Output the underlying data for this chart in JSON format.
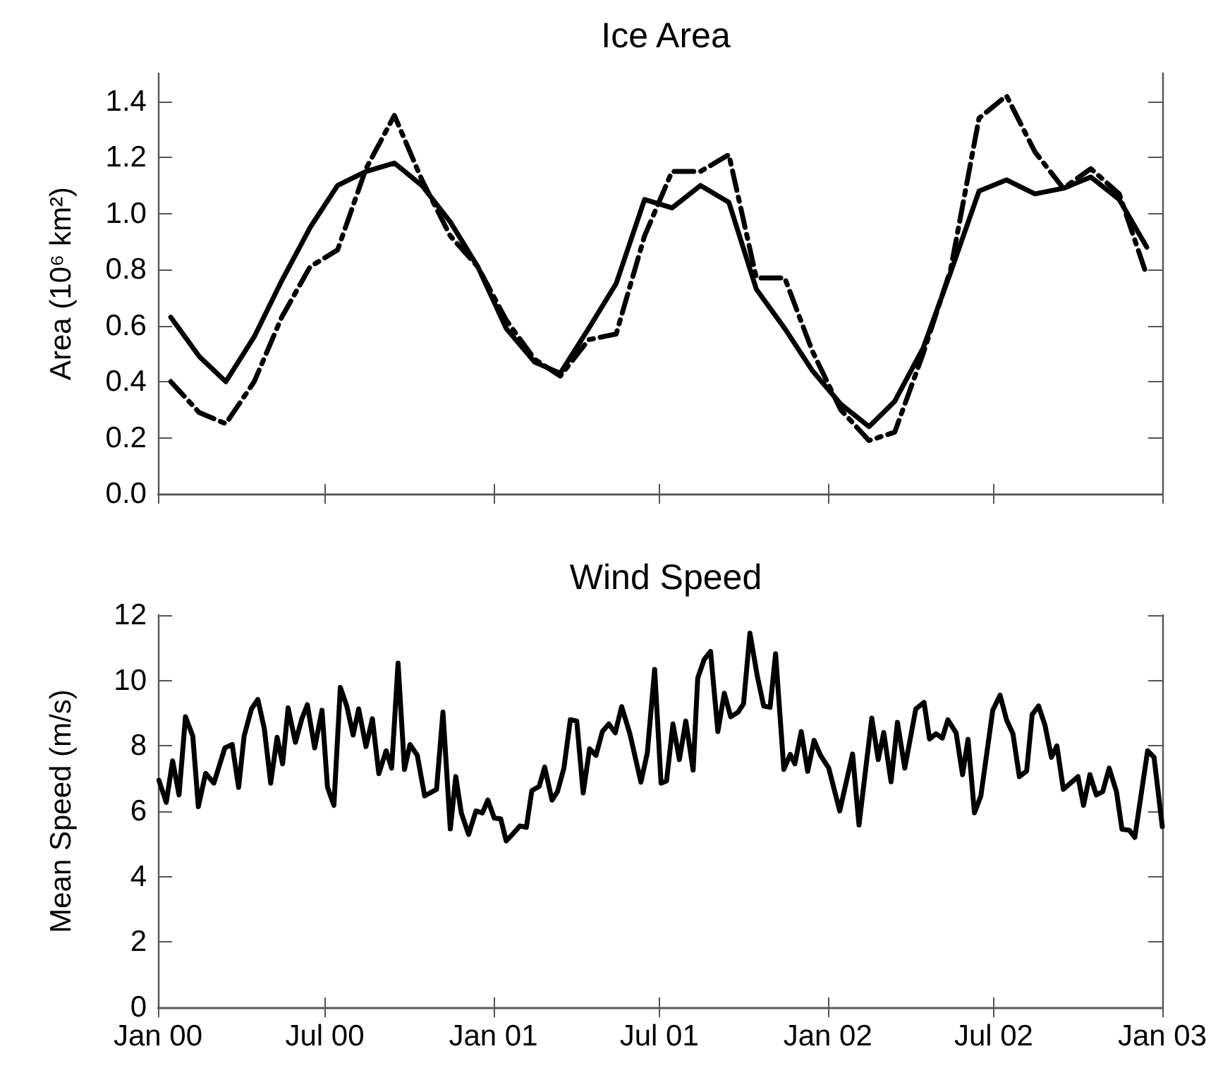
{
  "chart_data": [
    {
      "type": "line",
      "title": "Ice Area",
      "ylabel": "Area (10⁶ km²)",
      "tick_labels": "y",
      "marker": "none",
      "x": [
        "2000-01-15",
        "2000-02-15",
        "2000-03-15",
        "2000-04-15",
        "2000-05-15",
        "2000-06-15",
        "2000-07-15",
        "2000-08-15",
        "2000-09-15",
        "2000-10-15",
        "2000-11-15",
        "2000-12-15",
        "2001-01-15",
        "2001-02-15",
        "2001-03-15",
        "2001-04-15",
        "2001-05-15",
        "2001-06-15",
        "2001-07-15",
        "2001-08-15",
        "2001-09-15",
        "2001-10-15",
        "2001-11-15",
        "2001-12-15",
        "2002-01-15",
        "2002-02-15",
        "2002-03-15",
        "2002-04-15",
        "2002-05-15",
        "2002-06-15",
        "2002-07-15",
        "2002-08-15",
        "2002-09-15",
        "2002-10-15",
        "2002-11-15",
        "2002-12-15"
      ],
      "xlim": [
        "2000-01-01",
        "2003-01-01"
      ],
      "xticks": [
        {
          "value": "2000-01-01",
          "label": null
        },
        {
          "value": "2000-07-01",
          "label": null
        },
        {
          "value": "2001-01-01",
          "label": null
        },
        {
          "value": "2001-07-01",
          "label": null
        },
        {
          "value": "2002-01-01",
          "label": null
        },
        {
          "value": "2002-07-01",
          "label": null
        },
        {
          "value": "2003-01-01",
          "label": null
        }
      ],
      "ylim": [
        0,
        1.5
      ],
      "yticks": [
        {
          "value": 0,
          "label": "0.0"
        },
        {
          "value": 0.2,
          "label": "0.2"
        },
        {
          "value": 0.4,
          "label": "0.4"
        },
        {
          "value": 0.6,
          "label": "0.6"
        },
        {
          "value": 0.8,
          "label": "0.8"
        },
        {
          "value": 1,
          "label": "1.0"
        },
        {
          "value": 1.2,
          "label": "1.2"
        },
        {
          "value": 1.4,
          "label": "1.4"
        }
      ],
      "series": [
        {
          "color": "#000000",
          "line_style": "solid",
          "values": [
            0.63,
            0.49,
            0.4,
            0.56,
            0.76,
            0.95,
            1.1,
            1.15,
            1.18,
            1.1,
            0.97,
            0.81,
            0.59,
            0.47,
            0.43,
            0.59,
            0.75,
            1.05,
            1.02,
            1.1,
            1.04,
            0.73,
            0.59,
            0.44,
            0.32,
            0.24,
            0.33,
            0.52,
            0.79,
            1.08,
            1.12,
            1.07,
            1.09,
            1.13,
            1.05,
            0.88
          ]
        },
        {
          "color": "#000000",
          "line_style": "dashdot",
          "values": [
            0.4,
            0.29,
            0.25,
            0.4,
            0.63,
            0.81,
            0.87,
            1.16,
            1.35,
            1.12,
            0.92,
            0.81,
            0.62,
            0.48,
            0.42,
            0.55,
            0.57,
            0.92,
            1.15,
            1.15,
            1.21,
            0.77,
            0.77,
            0.51,
            0.3,
            0.19,
            0.22,
            0.5,
            0.8,
            1.34,
            1.42,
            1.22,
            1.09,
            1.16,
            1.07,
            0.78
          ]
        }
      ]
    },
    {
      "type": "line",
      "title": "Wind Speed",
      "ylabel": "Mean Speed (m/s)",
      "marker": "none",
      "x": [
        "2000-01-02",
        "2000-01-10",
        "2000-01-17",
        "2000-01-24",
        "2000-01-31",
        "2000-02-08",
        "2000-02-14",
        "2000-02-22",
        "2000-03-02",
        "2000-03-14",
        "2000-03-22",
        "2000-03-29",
        "2000-04-04",
        "2000-04-12",
        "2000-04-19",
        "2000-04-26",
        "2000-05-03",
        "2000-05-10",
        "2000-05-16",
        "2000-05-22",
        "2000-05-30",
        "2000-06-06",
        "2000-06-12",
        "2000-06-20",
        "2000-06-28",
        "2000-07-04",
        "2000-07-11",
        "2000-07-18",
        "2000-07-25",
        "2000-08-01",
        "2000-08-07",
        "2000-08-15",
        "2000-08-22",
        "2000-08-29",
        "2000-09-06",
        "2000-09-12",
        "2000-09-19",
        "2000-09-26",
        "2000-10-02",
        "2000-10-10",
        "2000-10-18",
        "2000-10-31",
        "2000-11-07",
        "2000-11-15",
        "2000-11-21",
        "2000-11-27",
        "2000-12-05",
        "2000-12-13",
        "2000-12-20",
        "2000-12-26",
        "2001-01-02",
        "2001-01-09",
        "2001-01-15",
        "2001-01-23",
        "2001-01-30",
        "2001-02-06",
        "2001-02-12",
        "2001-02-20",
        "2001-02-26",
        "2001-03-06",
        "2001-03-12",
        "2001-03-19",
        "2001-03-26",
        "2001-04-02",
        "2001-04-09",
        "2001-04-16",
        "2001-04-23",
        "2001-04-30",
        "2001-05-07",
        "2001-05-14",
        "2001-05-21",
        "2001-05-30",
        "2001-06-11",
        "2001-06-18",
        "2001-06-26",
        "2001-07-03",
        "2001-07-09",
        "2001-07-16",
        "2001-07-23",
        "2001-07-30",
        "2001-08-07",
        "2001-08-12",
        "2001-08-19",
        "2001-08-26",
        "2001-09-03",
        "2001-09-10",
        "2001-09-17",
        "2001-09-25",
        "2001-10-01",
        "2001-10-08",
        "2001-10-16",
        "2001-10-23",
        "2001-10-30",
        "2001-11-05",
        "2001-11-14",
        "2001-11-21",
        "2001-11-26",
        "2001-12-03",
        "2001-12-10",
        "2001-12-17",
        "2001-12-24",
        "2002-01-02",
        "2002-01-14",
        "2002-01-28",
        "2002-02-04",
        "2002-02-18",
        "2002-02-25",
        "2002-03-03",
        "2002-03-11",
        "2002-03-18",
        "2002-03-26",
        "2002-04-07",
        "2002-04-16",
        "2002-04-22",
        "2002-04-29",
        "2002-05-06",
        "2002-05-12",
        "2002-05-21",
        "2002-05-28",
        "2002-06-03",
        "2002-06-10",
        "2002-06-17",
        "2002-06-30",
        "2002-07-08",
        "2002-07-15",
        "2002-07-22",
        "2002-07-29",
        "2002-08-06",
        "2002-08-12",
        "2002-08-19",
        "2002-08-26",
        "2002-09-02",
        "2002-09-08",
        "2002-09-15",
        "2002-10-01",
        "2002-10-07",
        "2002-10-14",
        "2002-10-21",
        "2002-10-28",
        "2002-11-04",
        "2002-11-12",
        "2002-11-18",
        "2002-11-26",
        "2002-12-02",
        "2002-12-16",
        "2002-12-23",
        "2003-01-01"
      ],
      "xlim": [
        "2000-01-01",
        "2003-01-01"
      ],
      "xticks": [
        {
          "value": "2000-01-01",
          "label": "Jan 00"
        },
        {
          "value": "2000-07-01",
          "label": "Jul 00"
        },
        {
          "value": "2001-01-01",
          "label": "Jan 01"
        },
        {
          "value": "2001-07-01",
          "label": "Jul 01"
        },
        {
          "value": "2002-01-01",
          "label": "Jan 02"
        },
        {
          "value": "2002-07-01",
          "label": "Jul 02"
        },
        {
          "value": "2003-01-01",
          "label": "Jan 03"
        }
      ],
      "ylim": [
        0,
        12
      ],
      "yticks": [
        0,
        2,
        4,
        6,
        8,
        10,
        12
      ],
      "series": [
        {
          "color": "#000000",
          "line_style": "solid",
          "values": [
            6.95,
            6.27,
            7.54,
            6.5,
            8.89,
            8.3,
            6.14,
            7.16,
            6.86,
            7.94,
            8.04,
            6.73,
            8.3,
            9.13,
            9.42,
            8.53,
            6.86,
            8.26,
            7.45,
            9.16,
            8.11,
            8.83,
            9.26,
            7.94,
            9.09,
            6.73,
            6.18,
            9.79,
            9.22,
            8.33,
            9.13,
            7.98,
            8.83,
            7.15,
            7.85,
            7.32,
            10.53,
            7.28,
            8.04,
            7.71,
            6.47,
            6.67,
            9.03,
            5.46,
            7.06,
            5.95,
            5.29,
            6.01,
            5.95,
            6.34,
            5.79,
            5.77,
            5.09,
            5.33,
            5.55,
            5.51,
            6.63,
            6.76,
            7.35,
            6.34,
            6.6,
            7.32,
            8.8,
            8.76,
            6.56,
            7.91,
            7.71,
            8.44,
            8.67,
            8.4,
            9.2,
            8.37,
            6.89,
            7.78,
            10.34,
            6.86,
            6.93,
            8.67,
            7.58,
            8.76,
            7.26,
            10.07,
            10.64,
            10.89,
            8.44,
            9.61,
            8.89,
            9.03,
            9.29,
            11.45,
            10.14,
            9.22,
            9.18,
            10.82,
            7.28,
            7.74,
            7.45,
            8.44,
            7.22,
            8.17,
            7.71,
            7.32,
            6.01,
            7.75,
            5.58,
            8.85,
            7.58,
            8.41,
            6.9,
            8.72,
            7.32,
            9.13,
            9.33,
            8.21,
            8.37,
            8.24,
            8.8,
            8.4,
            7.12,
            8.2,
            5.95,
            6.47,
            9.09,
            9.55,
            8.8,
            8.37,
            7.06,
            7.23,
            8.96,
            9.22,
            8.63,
            7.65,
            8,
            6.67,
            7.06,
            6.18,
            7.12,
            6.5,
            6.6,
            7.32,
            6.6,
            5.45,
            5.42,
            5.2,
            7.85,
            7.65,
            5.53
          ]
        }
      ]
    }
  ]
}
